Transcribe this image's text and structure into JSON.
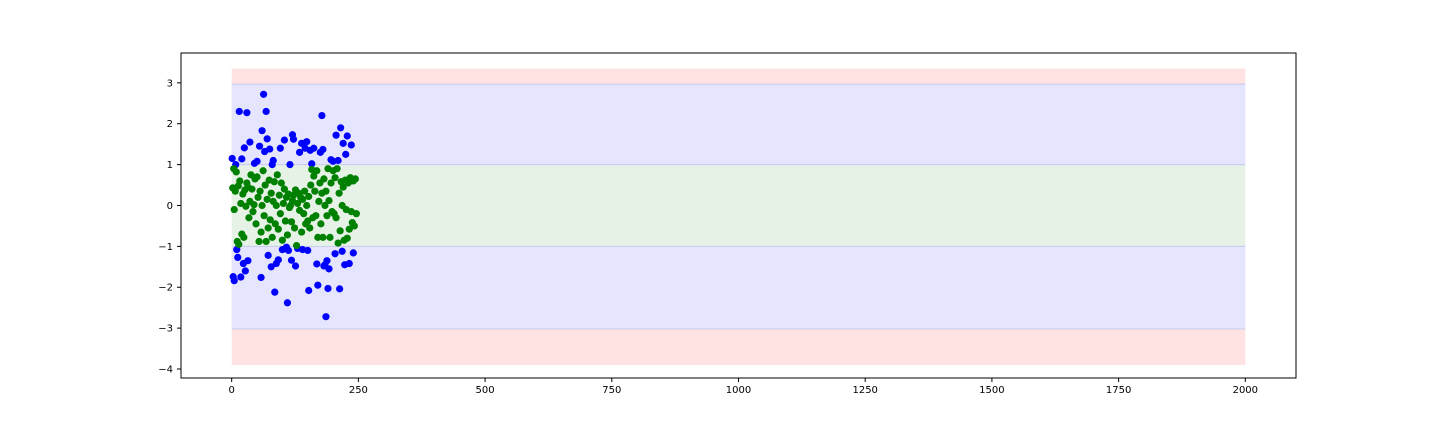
{
  "chart_data": {
    "type": "scatter",
    "title": "",
    "xlabel": "",
    "ylabel": "",
    "xlim": [
      -100,
      2100
    ],
    "ylim": [
      -4.22,
      3.73
    ],
    "xticks": [
      0,
      250,
      500,
      750,
      1000,
      1250,
      1500,
      1750,
      2000
    ],
    "yticks": [
      -4,
      -3,
      -2,
      -1,
      0,
      1,
      2,
      3
    ],
    "grid": false,
    "legend": "none",
    "bands": [
      {
        "name": "outer-band-top",
        "y0": 2.97,
        "y1": 3.35,
        "x0": 0,
        "x1": 2000,
        "color": "#ffe3e3"
      },
      {
        "name": "middle-band-top",
        "y0": 1.0,
        "y1": 2.97,
        "x0": 0,
        "x1": 2000,
        "color": "#e5e5ff"
      },
      {
        "name": "inner-band",
        "y0": -1.0,
        "y1": 1.0,
        "x0": 0,
        "x1": 2000,
        "color": "#e6f2e6"
      },
      {
        "name": "middle-band-bottom",
        "y0": -3.02,
        "y1": -1.0,
        "x0": 0,
        "x1": 2000,
        "color": "#e5e5ff"
      },
      {
        "name": "outer-band-bottom",
        "y0": -3.9,
        "y1": -3.02,
        "x0": 0,
        "x1": 2000,
        "color": "#ffe3e3"
      }
    ],
    "band_edge_color": "#c7cbee",
    "series": [
      {
        "color": "#0000ff",
        "points": [
          [
            1,
            1.15
          ],
          [
            3,
            -1.74
          ],
          [
            5,
            -1.84
          ],
          [
            8,
            1.0
          ],
          [
            10,
            -1.08
          ],
          [
            12,
            -1.27
          ],
          [
            15,
            2.3
          ],
          [
            18,
            -1.75
          ],
          [
            20,
            1.14
          ],
          [
            23,
            -1.42
          ],
          [
            25,
            1.41
          ],
          [
            27,
            -1.6
          ],
          [
            30,
            2.27
          ],
          [
            32,
            -1.35
          ],
          [
            36,
            1.55
          ],
          [
            45,
            1.03
          ],
          [
            50,
            1.08
          ],
          [
            55,
            1.45
          ],
          [
            58,
            -1.76
          ],
          [
            60,
            1.83
          ],
          [
            63,
            2.72
          ],
          [
            65,
            1.32
          ],
          [
            68,
            2.3
          ],
          [
            70,
            1.63
          ],
          [
            72,
            -1.22
          ],
          [
            75,
            1.38
          ],
          [
            78,
            -1.5
          ],
          [
            80,
            1.0
          ],
          [
            82,
            1.1
          ],
          [
            85,
            -2.12
          ],
          [
            88,
            -1.42
          ],
          [
            92,
            -1.33
          ],
          [
            96,
            1.4
          ],
          [
            100,
            -1.08
          ],
          [
            104,
            1.6
          ],
          [
            108,
            -1.02
          ],
          [
            110,
            -2.38
          ],
          [
            112,
            -1.1
          ],
          [
            115,
            1.0
          ],
          [
            118,
            -1.34
          ],
          [
            120,
            1.73
          ],
          [
            122,
            1.62
          ],
          [
            126,
            -1.48
          ],
          [
            130,
            -1.05
          ],
          [
            134,
            1.3
          ],
          [
            138,
            1.52
          ],
          [
            140,
            -1.08
          ],
          [
            145,
            1.4
          ],
          [
            148,
            1.56
          ],
          [
            150,
            -1.1
          ],
          [
            152,
            -2.08
          ],
          [
            155,
            1.35
          ],
          [
            158,
            1.02
          ],
          [
            162,
            1.4
          ],
          [
            168,
            -1.43
          ],
          [
            170,
            -1.95
          ],
          [
            175,
            1.3
          ],
          [
            178,
            2.2
          ],
          [
            180,
            1.37
          ],
          [
            182,
            -1.48
          ],
          [
            184,
            -1.45
          ],
          [
            186,
            -2.72
          ],
          [
            188,
            -1.35
          ],
          [
            190,
            -2.03
          ],
          [
            192,
            -1.55
          ],
          [
            196,
            1.12
          ],
          [
            200,
            1.08
          ],
          [
            204,
            -1.18
          ],
          [
            206,
            1.72
          ],
          [
            210,
            1.1
          ],
          [
            213,
            -2.04
          ],
          [
            215,
            1.9
          ],
          [
            218,
            -1.12
          ],
          [
            220,
            1.52
          ],
          [
            223,
            -1.45
          ],
          [
            225,
            1.25
          ],
          [
            228,
            1.7
          ],
          [
            232,
            -1.42
          ],
          [
            236,
            1.48
          ],
          [
            240,
            -1.16
          ]
        ]
      },
      {
        "color": "#008000",
        "points": [
          [
            2,
            0.43
          ],
          [
            4,
            0.9
          ],
          [
            5,
            -0.1
          ],
          [
            7,
            0.35
          ],
          [
            9,
            0.82
          ],
          [
            11,
            -0.88
          ],
          [
            13,
            0.48
          ],
          [
            14,
            -0.95
          ],
          [
            16,
            0.6
          ],
          [
            18,
            0.05
          ],
          [
            20,
            -0.7
          ],
          [
            22,
            0.28
          ],
          [
            24,
            -0.78
          ],
          [
            26,
            0.38
          ],
          [
            28,
            -0.02
          ],
          [
            30,
            0.55
          ],
          [
            32,
            0.45
          ],
          [
            34,
            -0.3
          ],
          [
            36,
            0.1
          ],
          [
            38,
            0.75
          ],
          [
            40,
            0.4
          ],
          [
            42,
            -0.15
          ],
          [
            44,
            0.02
          ],
          [
            46,
            0.65
          ],
          [
            48,
            -0.45
          ],
          [
            50,
            0.7
          ],
          [
            52,
            0.2
          ],
          [
            54,
            -0.88
          ],
          [
            56,
            0.35
          ],
          [
            58,
            -0.65
          ],
          [
            60,
            0.0
          ],
          [
            62,
            0.85
          ],
          [
            64,
            -0.25
          ],
          [
            66,
            0.5
          ],
          [
            68,
            -0.88
          ],
          [
            70,
            0.15
          ],
          [
            72,
            -0.55
          ],
          [
            74,
            0.62
          ],
          [
            76,
            -0.35
          ],
          [
            78,
            0.3
          ],
          [
            80,
            -0.78
          ],
          [
            82,
            0.1
          ],
          [
            84,
            0.58
          ],
          [
            86,
            -0.45
          ],
          [
            88,
            0.0
          ],
          [
            90,
            0.75
          ],
          [
            92,
            -0.58
          ],
          [
            94,
            0.25
          ],
          [
            96,
            -0.2
          ],
          [
            98,
            0.55
          ],
          [
            100,
            -0.85
          ],
          [
            102,
            0.05
          ],
          [
            104,
            0.4
          ],
          [
            106,
            -0.38
          ],
          [
            108,
            0.2
          ],
          [
            110,
            -0.72
          ],
          [
            112,
            0.28
          ],
          [
            114,
            -0.05
          ],
          [
            116,
            0.0
          ],
          [
            118,
            -0.4
          ],
          [
            120,
            0.12
          ],
          [
            122,
            0.25
          ],
          [
            124,
            -0.55
          ],
          [
            126,
            0.38
          ],
          [
            128,
            -0.98
          ],
          [
            130,
            0.05
          ],
          [
            132,
            0.3
          ],
          [
            134,
            -0.12
          ],
          [
            136,
            0.2
          ],
          [
            138,
            -0.65
          ],
          [
            140,
            0.15
          ],
          [
            142,
            -0.2
          ],
          [
            144,
            0.35
          ],
          [
            146,
            -0.45
          ],
          [
            148,
            0.0
          ],
          [
            150,
            -0.38
          ],
          [
            152,
            0.22
          ],
          [
            154,
            -0.55
          ],
          [
            156,
            0.5
          ],
          [
            158,
            0.88
          ],
          [
            160,
            -0.3
          ],
          [
            162,
            0.72
          ],
          [
            164,
            0.35
          ],
          [
            166,
            -0.25
          ],
          [
            168,
            0.85
          ],
          [
            170,
            -0.78
          ],
          [
            172,
            0.1
          ],
          [
            174,
            0.55
          ],
          [
            176,
            -0.45
          ],
          [
            178,
            0.3
          ],
          [
            180,
            -0.78
          ],
          [
            182,
            0.65
          ],
          [
            184,
            0.0
          ],
          [
            186,
            0.35
          ],
          [
            188,
            -0.25
          ],
          [
            190,
            0.9
          ],
          [
            192,
            0.12
          ],
          [
            194,
            -0.78
          ],
          [
            196,
            0.55
          ],
          [
            198,
            -0.15
          ],
          [
            200,
            0.85
          ],
          [
            202,
            -0.2
          ],
          [
            204,
            0.68
          ],
          [
            206,
            -0.3
          ],
          [
            208,
            0.9
          ],
          [
            210,
            -0.92
          ],
          [
            212,
            0.3
          ],
          [
            214,
            -0.62
          ],
          [
            216,
            0.58
          ],
          [
            218,
            0.0
          ],
          [
            220,
            0.45
          ],
          [
            222,
            -0.85
          ],
          [
            224,
            0.62
          ],
          [
            226,
            -0.1
          ],
          [
            228,
            -0.8
          ],
          [
            230,
            0.55
          ],
          [
            232,
            -0.58
          ],
          [
            234,
            0.68
          ],
          [
            236,
            -0.15
          ],
          [
            238,
            -0.42
          ],
          [
            240,
            0.6
          ],
          [
            242,
            -0.5
          ],
          [
            244,
            0.65
          ],
          [
            246,
            -0.2
          ]
        ]
      }
    ]
  }
}
